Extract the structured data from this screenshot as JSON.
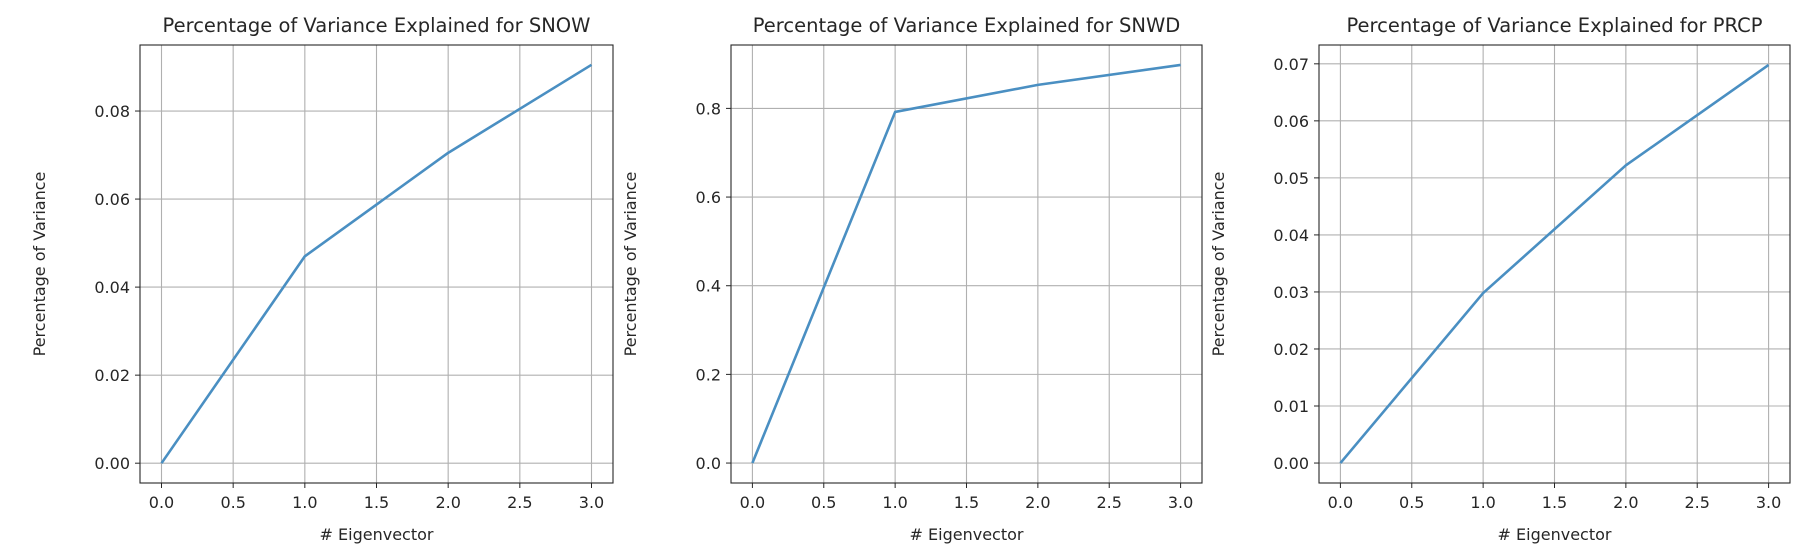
{
  "chart_data": [
    {
      "type": "line",
      "title": "Percentage of Variance Explained for SNOW",
      "xlabel": "# Eigenvector",
      "ylabel": "Percentage of Variance",
      "x": [
        0,
        1,
        2,
        3
      ],
      "series": [
        {
          "values": [
            0.0,
            0.047,
            0.0705,
            0.0905
          ]
        }
      ],
      "xlim": [
        -0.15,
        3.15
      ],
      "ylim": [
        -0.0045,
        0.095
      ],
      "xticks": [
        "0.0",
        "0.5",
        "1.0",
        "1.5",
        "2.0",
        "2.5",
        "3.0"
      ],
      "yticks": [
        "0.00",
        "0.02",
        "0.04",
        "0.06",
        "0.08"
      ],
      "grid": true,
      "line_color": "#4a8fc2"
    },
    {
      "type": "line",
      "title": "Percentage of Variance Explained for SNWD",
      "xlabel": "# Eigenvector",
      "ylabel": "Percentage of Variance",
      "x": [
        0,
        1,
        2,
        3
      ],
      "series": [
        {
          "values": [
            0.0,
            0.792,
            0.853,
            0.898
          ]
        }
      ],
      "xlim": [
        -0.15,
        3.15
      ],
      "ylim": [
        -0.045,
        0.943
      ],
      "xticks": [
        "0.0",
        "0.5",
        "1.0",
        "1.5",
        "2.0",
        "2.5",
        "3.0"
      ],
      "yticks": [
        "0.0",
        "0.2",
        "0.4",
        "0.6",
        "0.8"
      ],
      "grid": true,
      "line_color": "#4a8fc2"
    },
    {
      "type": "line",
      "title": "Percentage of Variance Explained for PRCP",
      "xlabel": "# Eigenvector",
      "ylabel": "Percentage of Variance",
      "x": [
        0,
        1,
        2,
        3
      ],
      "series": [
        {
          "values": [
            0.0,
            0.0298,
            0.0522,
            0.0698
          ]
        }
      ],
      "xlim": [
        -0.15,
        3.15
      ],
      "ylim": [
        -0.0035,
        0.0733
      ],
      "xticks": [
        "0.0",
        "0.5",
        "1.0",
        "1.5",
        "2.0",
        "2.5",
        "3.0"
      ],
      "yticks": [
        "0.00",
        "0.01",
        "0.02",
        "0.03",
        "0.04",
        "0.05",
        "0.06",
        "0.07"
      ],
      "grid": true,
      "line_color": "#4a8fc2"
    }
  ]
}
